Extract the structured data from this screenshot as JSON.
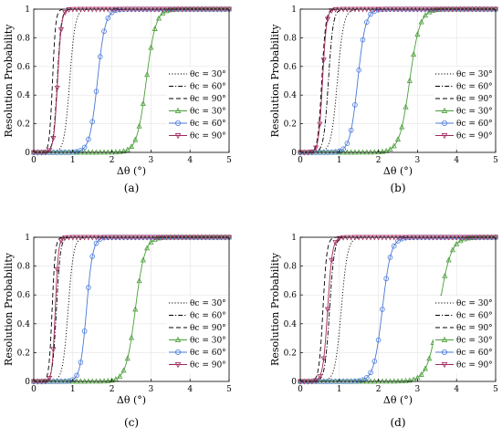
{
  "chart_data": [
    {
      "type": "line",
      "panel_label": "(a)",
      "xlabel": "Δθ (°)",
      "ylabel": "Resolution Probability",
      "xlim": [
        0,
        5
      ],
      "ylim": [
        0,
        1
      ],
      "xticks": [
        0,
        1,
        2,
        3,
        4,
        5
      ],
      "yticks": [
        0,
        0.2,
        0.4,
        0.6,
        0.8,
        1
      ],
      "grid": true,
      "legend_position": "lower-right",
      "series": [
        {
          "name": "θc = 30°",
          "style": "dotted",
          "color": "#000000",
          "marker": "none",
          "midpoint": 0.92,
          "width": 0.07
        },
        {
          "name": "θc = 60°",
          "style": "dashdot",
          "color": "#000000",
          "marker": "none",
          "midpoint": 0.6,
          "width": 0.05
        },
        {
          "name": "θc = 90°",
          "style": "dashed",
          "color": "#000000",
          "marker": "none",
          "midpoint": 0.48,
          "width": 0.04
        },
        {
          "name": "θc = 30°",
          "style": "solid",
          "color": "#4b9e3a",
          "marker": "triangle-up",
          "midpoint": 2.88,
          "width": 0.12
        },
        {
          "name": "θc = 60°",
          "style": "solid",
          "color": "#4a78d6",
          "marker": "circle",
          "midpoint": 1.63,
          "width": 0.1
        },
        {
          "name": "θc = 90°",
          "style": "solid",
          "color": "#a0285e",
          "marker": "triangle-down",
          "midpoint": 0.61,
          "width": 0.05
        }
      ]
    },
    {
      "type": "line",
      "panel_label": "(b)",
      "xlabel": "Δθ (°)",
      "ylabel": "Resolution Probability",
      "xlim": [
        0,
        5
      ],
      "ylim": [
        0,
        1
      ],
      "xticks": [
        0,
        1,
        2,
        3,
        4,
        5
      ],
      "yticks": [
        0,
        0.2,
        0.4,
        0.6,
        0.8,
        1
      ],
      "grid": true,
      "legend_position": "lower-right",
      "series": [
        {
          "name": "θc = 30°",
          "style": "dotted",
          "color": "#000000",
          "marker": "none",
          "midpoint": 0.95,
          "width": 0.08
        },
        {
          "name": "θc = 60°",
          "style": "dashdot",
          "color": "#000000",
          "marker": "none",
          "midpoint": 0.72,
          "width": 0.06
        },
        {
          "name": "θc = 90°",
          "style": "dashed",
          "color": "#000000",
          "marker": "none",
          "midpoint": 0.55,
          "width": 0.05
        },
        {
          "name": "θc = 30°",
          "style": "solid",
          "color": "#4b9e3a",
          "marker": "triangle-up",
          "midpoint": 2.8,
          "width": 0.13
        },
        {
          "name": "θc = 60°",
          "style": "solid",
          "color": "#4a78d6",
          "marker": "circle",
          "midpoint": 1.47,
          "width": 0.1
        },
        {
          "name": "θc = 90°",
          "style": "solid",
          "color": "#a0285e",
          "marker": "triangle-down",
          "midpoint": 0.57,
          "width": 0.05
        }
      ]
    },
    {
      "type": "line",
      "panel_label": "(c)",
      "xlabel": "Δθ (°)",
      "ylabel": "Resolution Probability",
      "xlim": [
        0,
        5
      ],
      "ylim": [
        0,
        1
      ],
      "xticks": [
        0,
        1,
        2,
        3,
        4,
        5
      ],
      "yticks": [
        0,
        0.2,
        0.4,
        0.6,
        0.8,
        1
      ],
      "grid": true,
      "legend_position": "lower-right",
      "series": [
        {
          "name": "θc = 30°",
          "style": "dotted",
          "color": "#000000",
          "marker": "none",
          "midpoint": 0.88,
          "width": 0.07
        },
        {
          "name": "θc = 60°",
          "style": "dashdot",
          "color": "#000000",
          "marker": "none",
          "midpoint": 0.58,
          "width": 0.05
        },
        {
          "name": "θc = 90°",
          "style": "dashed",
          "color": "#000000",
          "marker": "none",
          "midpoint": 0.47,
          "width": 0.04
        },
        {
          "name": "θc = 30°",
          "style": "solid",
          "color": "#4b9e3a",
          "marker": "triangle-up",
          "midpoint": 2.6,
          "width": 0.12
        },
        {
          "name": "θc = 60°",
          "style": "solid",
          "color": "#4a78d6",
          "marker": "circle",
          "midpoint": 1.35,
          "width": 0.08
        },
        {
          "name": "θc = 90°",
          "style": "solid",
          "color": "#a0285e",
          "marker": "triangle-down",
          "midpoint": 0.55,
          "width": 0.04
        }
      ]
    },
    {
      "type": "line",
      "panel_label": "(d)",
      "xlabel": "Δθ (°)",
      "ylabel": "Resolution Probability",
      "xlim": [
        0,
        5
      ],
      "ylim": [
        0,
        1
      ],
      "xticks": [
        0,
        1,
        2,
        3,
        4,
        5
      ],
      "yticks": [
        0,
        0.2,
        0.4,
        0.6,
        0.8,
        1
      ],
      "grid": true,
      "legend_position": "lower-right",
      "series": [
        {
          "name": "θc = 30°",
          "style": "dotted",
          "color": "#000000",
          "marker": "none",
          "midpoint": 1.05,
          "width": 0.08
        },
        {
          "name": "θc = 60°",
          "style": "dashdot",
          "color": "#000000",
          "marker": "none",
          "midpoint": 0.75,
          "width": 0.06
        },
        {
          "name": "θc = 90°",
          "style": "dashed",
          "color": "#000000",
          "marker": "none",
          "midpoint": 0.58,
          "width": 0.05
        },
        {
          "name": "θc = 30°",
          "style": "solid",
          "color": "#4b9e3a",
          "marker": "triangle-up",
          "midpoint": 3.55,
          "width": 0.15
        },
        {
          "name": "θc = 60°",
          "style": "solid",
          "color": "#4a78d6",
          "marker": "circle",
          "midpoint": 2.1,
          "width": 0.11
        },
        {
          "name": "θc = 90°",
          "style": "solid",
          "color": "#a0285e",
          "marker": "triangle-down",
          "midpoint": 0.7,
          "width": 0.06
        }
      ]
    }
  ]
}
